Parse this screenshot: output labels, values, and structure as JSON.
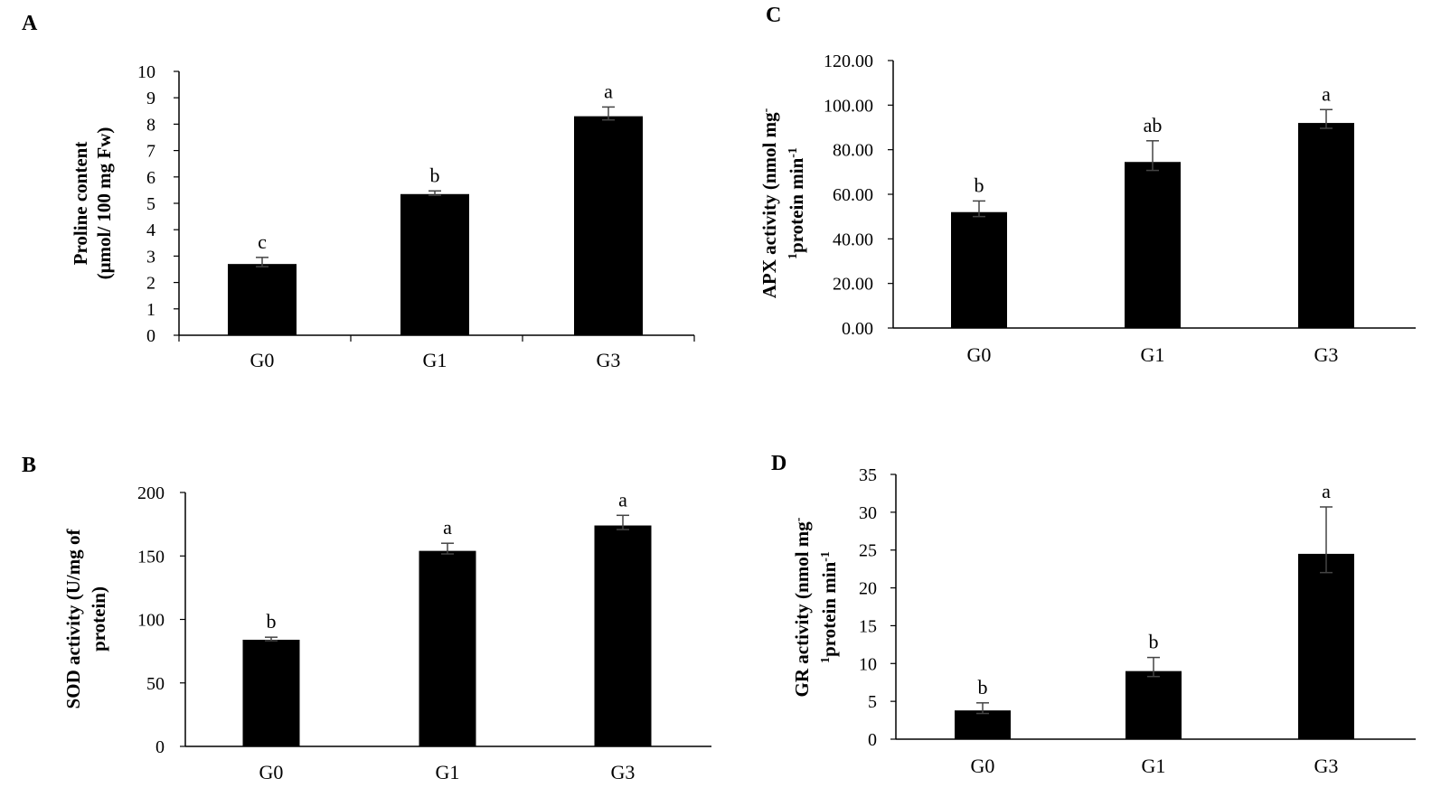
{
  "chart_data": [
    {
      "panel": "A",
      "type": "bar",
      "title": "",
      "xlabel": "",
      "ylabel_lines": [
        "Proline content",
        "(μmol/ 100 mg Fw)"
      ],
      "categories": [
        "G0",
        "G1",
        "G3"
      ],
      "values": [
        2.7,
        5.35,
        8.3
      ],
      "error": [
        0.25,
        0.12,
        0.35
      ],
      "letters": [
        "c",
        "b",
        "a"
      ],
      "ylim": [
        0,
        10
      ],
      "yticks": [
        "0",
        "1",
        "2",
        "3",
        "4",
        "5",
        "6",
        "7",
        "8",
        "9",
        "10"
      ],
      "grid": false
    },
    {
      "panel": "B",
      "type": "bar",
      "title": "",
      "xlabel": "",
      "ylabel_lines": [
        "SOD activity (U/mg of",
        "protein)"
      ],
      "categories": [
        "G0",
        "G1",
        "G3"
      ],
      "values": [
        84,
        154,
        174
      ],
      "error": [
        2,
        6,
        8
      ],
      "letters": [
        "b",
        "a",
        "a"
      ],
      "ylim": [
        0,
        200
      ],
      "yticks": [
        "0",
        "50",
        "100",
        "150",
        "200"
      ],
      "grid": false
    },
    {
      "panel": "C",
      "type": "bar",
      "title": "",
      "xlabel": "",
      "ylabel_lines": [
        "APX activity (nmol mg",
        "protein min"
      ],
      "ylabel_sup": [
        "-",
        "-1"
      ],
      "ylabel_pre_sup": [
        "",
        "1"
      ],
      "categories": [
        "G0",
        "G1",
        "G3"
      ],
      "values": [
        52,
        74.5,
        92
      ],
      "error": [
        5,
        9.5,
        6
      ],
      "letters": [
        "b",
        "ab",
        "a"
      ],
      "ylim": [
        0,
        120
      ],
      "yticks": [
        "0.00",
        "20.00",
        "40.00",
        "60.00",
        "80.00",
        "100.00",
        "120.00"
      ],
      "grid": false
    },
    {
      "panel": "D",
      "type": "bar",
      "title": "",
      "xlabel": "",
      "ylabel_lines": [
        "GR activity (nmol mg",
        "protein min"
      ],
      "ylabel_sup": [
        "-",
        "-1"
      ],
      "ylabel_pre_sup": [
        "",
        "1"
      ],
      "categories": [
        "G0",
        "G1",
        "G3"
      ],
      "values": [
        3.8,
        9,
        24.5
      ],
      "error": [
        1,
        1.8,
        6.2
      ],
      "letters": [
        "b",
        "b",
        "a"
      ],
      "ylim": [
        0,
        35
      ],
      "yticks": [
        "0",
        "5",
        "10",
        "15",
        "20",
        "25",
        "30",
        "35"
      ],
      "grid": false
    }
  ]
}
